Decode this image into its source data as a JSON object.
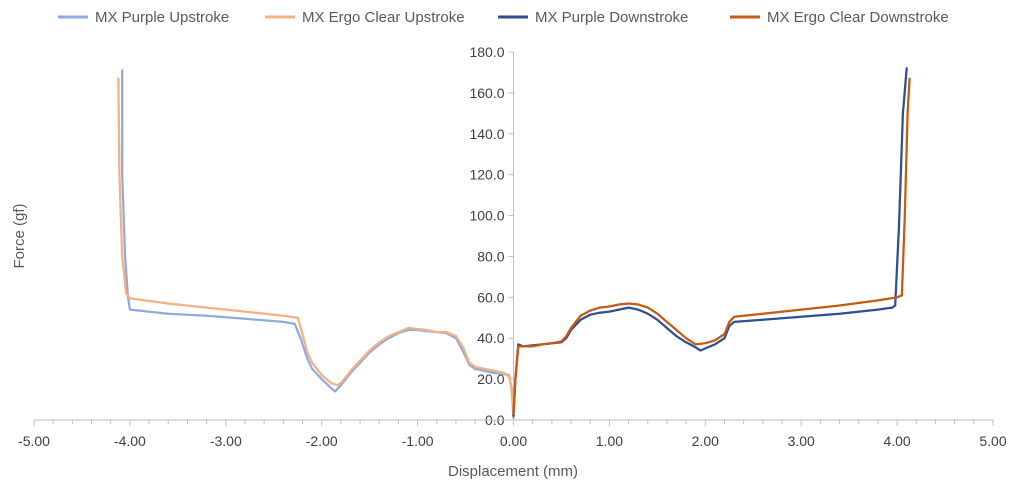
{
  "chart_data": {
    "type": "line",
    "xlabel": "Displacement (mm)",
    "ylabel": "Force (gf)",
    "xlim": [
      -5,
      5
    ],
    "ylim": [
      0,
      180
    ],
    "grid": false,
    "legend_position": "top",
    "x_ticks": [
      "-5.00",
      "-4.00",
      "-3.00",
      "-2.00",
      "-1.00",
      "0.00",
      "1.00",
      "2.00",
      "3.00",
      "4.00",
      "5.00"
    ],
    "y_ticks": [
      "0.0",
      "20.0",
      "40.0",
      "60.0",
      "80.0",
      "100.0",
      "120.0",
      "140.0",
      "160.0",
      "180.0"
    ],
    "series": [
      {
        "name": "MX Purple Upstroke",
        "color": "#8faadc",
        "points": [
          [
            -4.08,
            171
          ],
          [
            -4.08,
            120
          ],
          [
            -4.05,
            80
          ],
          [
            -4.02,
            60
          ],
          [
            -4.0,
            54
          ],
          [
            -3.6,
            52
          ],
          [
            -3.2,
            51
          ],
          [
            -2.8,
            49.5
          ],
          [
            -2.4,
            48
          ],
          [
            -2.28,
            47
          ],
          [
            -2.22,
            40
          ],
          [
            -2.15,
            30
          ],
          [
            -2.1,
            25
          ],
          [
            -2.0,
            20
          ],
          [
            -1.9,
            15.5
          ],
          [
            -1.86,
            14
          ],
          [
            -1.8,
            17
          ],
          [
            -1.7,
            23
          ],
          [
            -1.6,
            28
          ],
          [
            -1.5,
            33
          ],
          [
            -1.4,
            37
          ],
          [
            -1.3,
            40
          ],
          [
            -1.2,
            42.5
          ],
          [
            -1.1,
            44
          ],
          [
            -1.0,
            44
          ],
          [
            -0.9,
            43.5
          ],
          [
            -0.8,
            43
          ],
          [
            -0.7,
            42.5
          ],
          [
            -0.6,
            40
          ],
          [
            -0.52,
            33
          ],
          [
            -0.46,
            27
          ],
          [
            -0.4,
            25
          ],
          [
            -0.3,
            24
          ],
          [
            -0.2,
            23
          ],
          [
            -0.1,
            22.5
          ],
          [
            -0.05,
            22
          ],
          [
            -0.02,
            16
          ],
          [
            0.0,
            1
          ]
        ]
      },
      {
        "name": "MX Ergo Clear Upstroke",
        "color": "#f4b183",
        "points": [
          [
            -4.12,
            167
          ],
          [
            -4.11,
            120
          ],
          [
            -4.08,
            80
          ],
          [
            -4.04,
            62
          ],
          [
            -4.0,
            59.5
          ],
          [
            -3.6,
            57
          ],
          [
            -3.2,
            55
          ],
          [
            -2.8,
            53
          ],
          [
            -2.4,
            51
          ],
          [
            -2.25,
            50
          ],
          [
            -2.2,
            42
          ],
          [
            -2.15,
            33
          ],
          [
            -2.1,
            28
          ],
          [
            -2.0,
            22
          ],
          [
            -1.9,
            18
          ],
          [
            -1.84,
            17
          ],
          [
            -1.8,
            18
          ],
          [
            -1.7,
            24
          ],
          [
            -1.6,
            29
          ],
          [
            -1.5,
            34
          ],
          [
            -1.4,
            38
          ],
          [
            -1.3,
            41
          ],
          [
            -1.2,
            43
          ],
          [
            -1.1,
            45
          ],
          [
            -1.0,
            44.5
          ],
          [
            -0.9,
            44
          ],
          [
            -0.8,
            43
          ],
          [
            -0.7,
            43
          ],
          [
            -0.6,
            41
          ],
          [
            -0.52,
            35
          ],
          [
            -0.46,
            28
          ],
          [
            -0.4,
            26
          ],
          [
            -0.3,
            25
          ],
          [
            -0.2,
            24
          ],
          [
            -0.1,
            23
          ],
          [
            -0.04,
            21
          ],
          [
            -0.02,
            14
          ],
          [
            0.0,
            2
          ]
        ]
      },
      {
        "name": "MX Purple Downstroke",
        "color": "#2f4f8f",
        "points": [
          [
            0.0,
            2
          ],
          [
            0.02,
            20
          ],
          [
            0.05,
            37
          ],
          [
            0.1,
            36
          ],
          [
            0.2,
            36.5
          ],
          [
            0.3,
            37
          ],
          [
            0.4,
            37.5
          ],
          [
            0.5,
            38
          ],
          [
            0.55,
            40
          ],
          [
            0.6,
            44
          ],
          [
            0.7,
            49
          ],
          [
            0.8,
            51.5
          ],
          [
            0.9,
            52.5
          ],
          [
            1.0,
            53
          ],
          [
            1.1,
            54
          ],
          [
            1.2,
            55
          ],
          [
            1.3,
            54
          ],
          [
            1.4,
            52
          ],
          [
            1.5,
            49
          ],
          [
            1.6,
            45
          ],
          [
            1.7,
            41
          ],
          [
            1.8,
            38
          ],
          [
            1.9,
            35.5
          ],
          [
            1.95,
            34
          ],
          [
            2.0,
            35
          ],
          [
            2.1,
            37
          ],
          [
            2.2,
            40
          ],
          [
            2.25,
            46
          ],
          [
            2.3,
            48
          ],
          [
            2.6,
            49
          ],
          [
            3.0,
            50.5
          ],
          [
            3.4,
            52
          ],
          [
            3.8,
            54
          ],
          [
            3.95,
            55
          ],
          [
            3.98,
            56
          ],
          [
            4.02,
            95
          ],
          [
            4.06,
            150
          ],
          [
            4.1,
            172
          ]
        ]
      },
      {
        "name": "MX Ergo Clear Downstroke",
        "color": "#c55a11",
        "points": [
          [
            0.0,
            3
          ],
          [
            0.02,
            20
          ],
          [
            0.05,
            36
          ],
          [
            0.1,
            36
          ],
          [
            0.2,
            36
          ],
          [
            0.3,
            37
          ],
          [
            0.4,
            37.5
          ],
          [
            0.5,
            38.5
          ],
          [
            0.55,
            41
          ],
          [
            0.6,
            45
          ],
          [
            0.7,
            51
          ],
          [
            0.8,
            53.5
          ],
          [
            0.9,
            55
          ],
          [
            1.0,
            55.5
          ],
          [
            1.1,
            56.5
          ],
          [
            1.2,
            57
          ],
          [
            1.3,
            56.5
          ],
          [
            1.4,
            55
          ],
          [
            1.5,
            52
          ],
          [
            1.6,
            48
          ],
          [
            1.7,
            44
          ],
          [
            1.8,
            40
          ],
          [
            1.9,
            37
          ],
          [
            2.0,
            37.5
          ],
          [
            2.1,
            39
          ],
          [
            2.2,
            42
          ],
          [
            2.25,
            48
          ],
          [
            2.3,
            50.5
          ],
          [
            2.6,
            52
          ],
          [
            3.0,
            54
          ],
          [
            3.4,
            56
          ],
          [
            3.8,
            58.5
          ],
          [
            4.0,
            60
          ],
          [
            4.05,
            61
          ],
          [
            4.08,
            100
          ],
          [
            4.11,
            150
          ],
          [
            4.13,
            167
          ]
        ]
      }
    ]
  }
}
